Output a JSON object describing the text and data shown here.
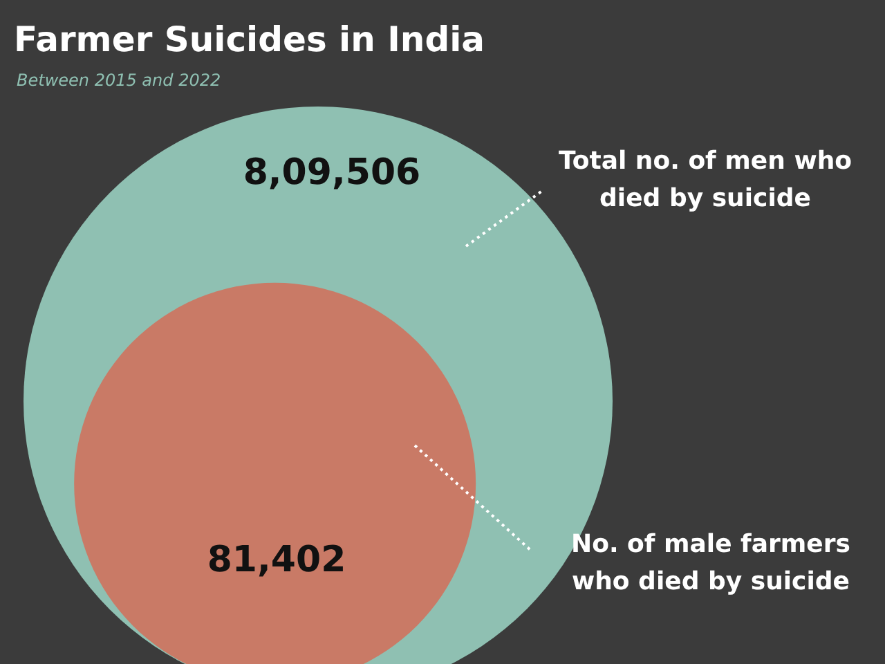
{
  "chart_data": {
    "type": "other",
    "title": "Farmer Suicides in India",
    "subtitle": "Between 2015 and 2022",
    "categories": [
      "Total no. of men who died by suicide",
      "No. of male farmers who died by suicide"
    ],
    "values": [
      809506,
      81402
    ],
    "value_labels": [
      "8,09,506",
      "81,402"
    ],
    "colors": [
      "#8fc0b2",
      "#c97a66"
    ]
  }
}
